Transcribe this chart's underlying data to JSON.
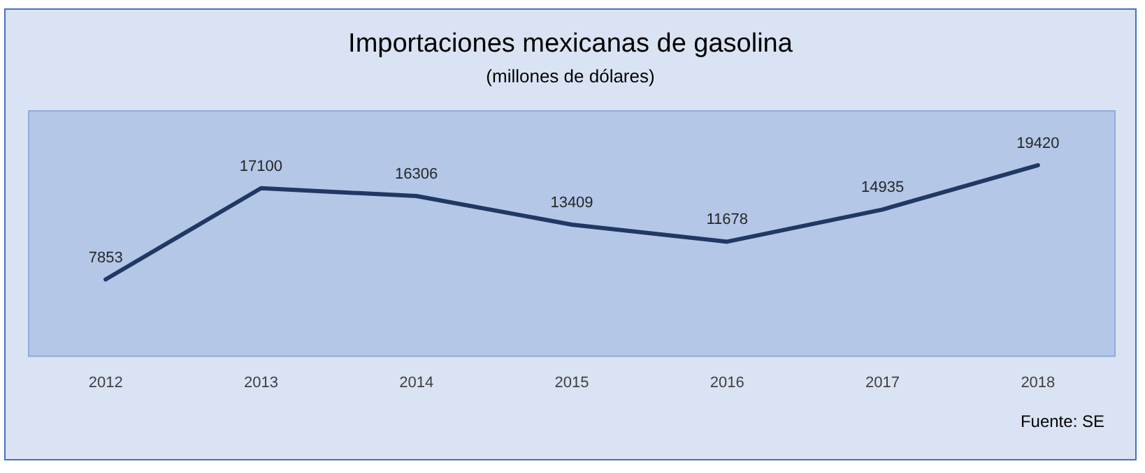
{
  "chart_data": {
    "type": "line",
    "title": "Importaciones mexicanas de gasolina",
    "subtitle": "(millones de dólares)",
    "categories": [
      "2012",
      "2013",
      "2014",
      "2015",
      "2016",
      "2017",
      "2018"
    ],
    "series": [
      {
        "color": "#203864",
        "values": [
          7853,
          17100,
          16306,
          13409,
          11678,
          14935,
          19420
        ]
      }
    ],
    "data_labels": true,
    "grid": false,
    "legend": false,
    "marker": "none",
    "line_style": "solid",
    "tick_labels": "x",
    "annotations": [
      "Fuente: SE"
    ]
  }
}
